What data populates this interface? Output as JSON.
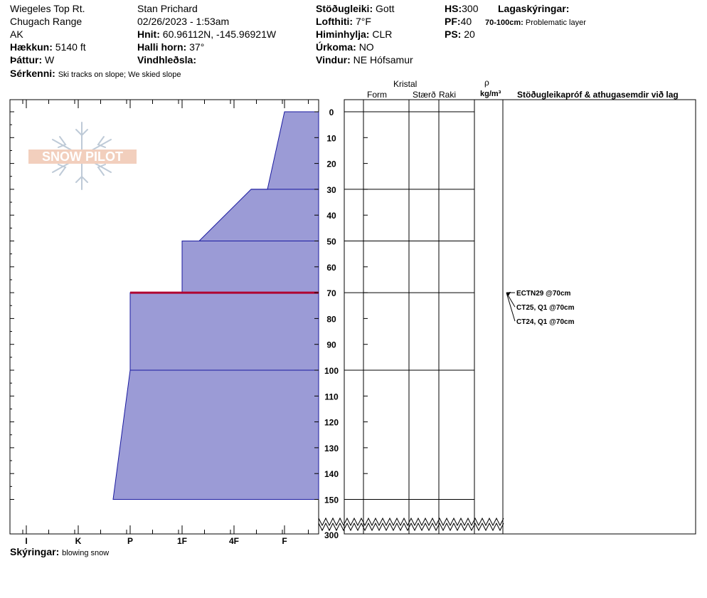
{
  "header": {
    "location": "Wiegeles Top Rt.",
    "range": "Chugach Range",
    "state": "AK",
    "elevation_label": "Hækkun:",
    "elevation_value": "5140 ft",
    "aspect_label": "Þáttur:",
    "aspect_value": "W",
    "features_label": "Sérkenni:",
    "features_value": "Ski tracks on slope; We skied slope",
    "observer": "Stan Prichard",
    "datetime": "02/26/2023 - 1:53am",
    "coords_label": "Hnit:",
    "coords_value": "60.96112N, -145.96921W",
    "slope_label": "Halli horn:",
    "slope_value": "37°",
    "wind_loading_label": "Vindhleðsla:",
    "wind_loading_value": "",
    "stability_label": "Stöðugleiki:",
    "stability_value": "Gott",
    "air_temp_label": "Lofthiti:",
    "air_temp_value": "7°F",
    "sky_label": "Himinhylja:",
    "sky_value": "CLR",
    "precip_label": "Úrkoma:",
    "precip_value": "NO",
    "wind_label": "Vindur:",
    "wind_value": "NE Hófsamur",
    "hs_label": "HS:",
    "hs_value": "300",
    "pf_label": "PF:",
    "pf_value": "40",
    "ps_label": "PS:",
    "ps_value": "20",
    "layer_notes_label": "Lagaskýringar:",
    "layer_notes_range": "70-100cm:",
    "layer_notes_text": "Problematic layer",
    "notes_label": "Skýringar:",
    "notes_value": "blowing snow"
  },
  "logo": {
    "text": "SNOW PILOT"
  },
  "columns": {
    "crystal": "Kristal",
    "form": "Form",
    "size": "Stærð",
    "moisture": "Raki",
    "rho": "ρ",
    "density_unit": "kg/m³",
    "tests_header": "Stöðugleikapróf & athugasemdir við lag"
  },
  "chart_data": {
    "type": "area",
    "title": "",
    "hardness_ticks": [
      "I",
      "K",
      "P",
      "1F",
      "4F",
      "F"
    ],
    "depth_ticks": [
      0,
      10,
      20,
      30,
      40,
      50,
      60,
      70,
      80,
      90,
      100,
      110,
      120,
      130,
      140,
      150
    ],
    "depth_bottom_label": 300,
    "depth_unit": "cm",
    "depth_axis_break_at": 150,
    "profile": [
      {
        "depth": 0,
        "hardness": "F"
      },
      {
        "depth": 30,
        "hardness": "F-"
      },
      {
        "depth": 30,
        "hardness": "4F+"
      },
      {
        "depth": 50,
        "hardness": "1F+"
      },
      {
        "depth": 50,
        "hardness": "1F"
      },
      {
        "depth": 70,
        "hardness": "1F"
      },
      {
        "depth": 70,
        "hardness": "P"
      },
      {
        "depth": 100,
        "hardness": "P"
      },
      {
        "depth": 150,
        "hardness": "P-"
      }
    ],
    "layer_boundaries": [
      0,
      30,
      50,
      70,
      100,
      150
    ],
    "weak_layer_depth": 70,
    "stability_tests": [
      {
        "label": "ECTN29 @70cm",
        "depth": 70
      },
      {
        "label": "CT25, Q1 @70cm",
        "depth": 70
      },
      {
        "label": "CT24, Q1 @70cm",
        "depth": 70
      }
    ],
    "colors": {
      "fill": "#9b9bd6",
      "edge": "#1a1aa0",
      "weak_layer": "#b00030"
    }
  }
}
